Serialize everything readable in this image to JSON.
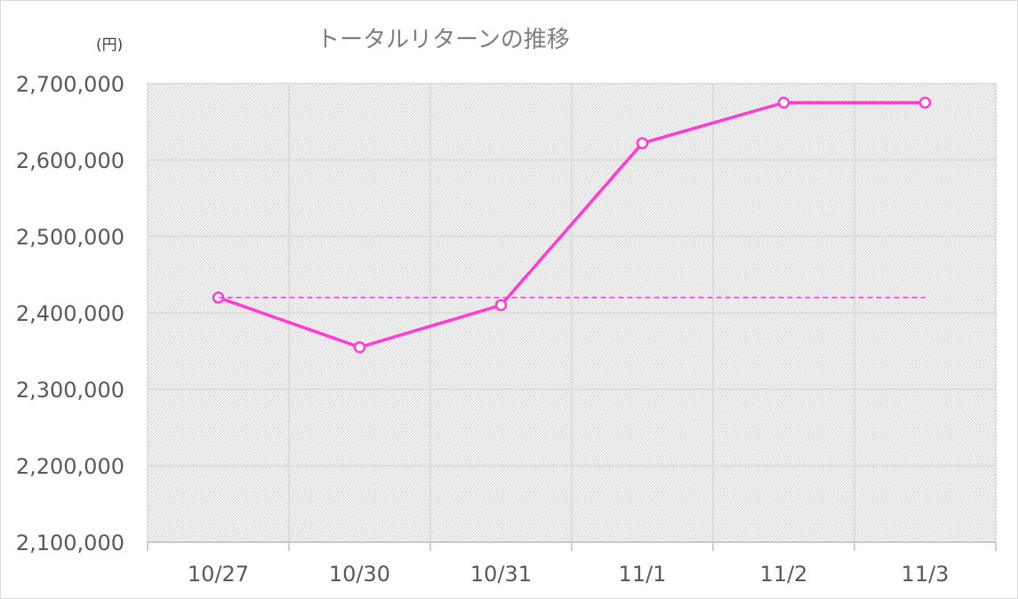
{
  "chart_data": {
    "type": "line",
    "title": "トータルリターンの推移",
    "unit_label": "(円)",
    "categories": [
      "10/27",
      "10/30",
      "10/31",
      "11/1",
      "11/2",
      "11/3"
    ],
    "series": [
      {
        "values": [
          2420000,
          2355000,
          2410000,
          2622000,
          2675000,
          2675000
        ],
        "color": "#ff3ccf",
        "marker": "circle-hollow"
      },
      {
        "values": [
          2420000,
          2420000,
          2420000,
          2420000,
          2420000,
          2420000
        ],
        "color": "#ff3ccf",
        "style": "dashed"
      }
    ],
    "ylim": [
      2100000,
      2700000
    ],
    "yticks": [
      2100000,
      2200000,
      2300000,
      2400000,
      2500000,
      2600000,
      2700000
    ],
    "ytick_labels": [
      "2,100,000",
      "2,200,000",
      "2,300,000",
      "2,400,000",
      "2,500,000",
      "2,600,000",
      "2,700,000"
    ],
    "grid": true,
    "legend": "none",
    "plot_fill": "hatched-gray"
  }
}
